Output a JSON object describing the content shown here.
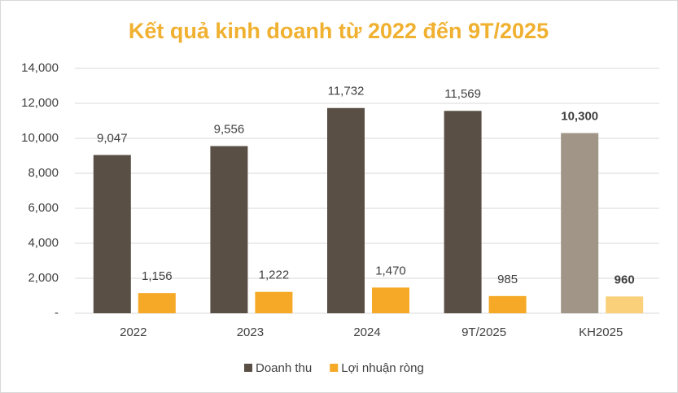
{
  "chart_data": {
    "type": "bar",
    "title": "Kết quả kinh doanh từ 2022 đến 9T/2025",
    "categories": [
      "2022",
      "2023",
      "2024",
      "9T/2025",
      "KH2025"
    ],
    "series": [
      {
        "name": "Doanh thu",
        "color": "#594f45",
        "colors": [
          "#594f45",
          "#594f45",
          "#594f45",
          "#594f45",
          "#a09586"
        ],
        "values": [
          9047,
          9556,
          11732,
          11569,
          10300
        ],
        "value_labels": [
          "9,047",
          "9,556",
          "11,732",
          "11,569",
          "10,300"
        ]
      },
      {
        "name": "Lợi nhuận ròng",
        "color": "#f5a926",
        "colors": [
          "#f5a926",
          "#f5a926",
          "#f5a926",
          "#f5a926",
          "#fbd07a"
        ],
        "values": [
          1156,
          1222,
          1470,
          985,
          960
        ],
        "value_labels": [
          "1,156",
          "1,222",
          "1,470",
          "985",
          "960"
        ]
      }
    ],
    "ylim": [
      0,
      14000
    ],
    "yticks": [
      {
        "value": 0,
        "label": "-"
      },
      {
        "value": 2000,
        "label": "2,000"
      },
      {
        "value": 4000,
        "label": "4,000"
      },
      {
        "value": 6000,
        "label": "6,000"
      },
      {
        "value": 8000,
        "label": "8,000"
      },
      {
        "value": 10000,
        "label": "10,000"
      },
      {
        "value": 12000,
        "label": "12,000"
      },
      {
        "value": 14000,
        "label": "14,000"
      }
    ],
    "grid": true,
    "legend": "bottom"
  }
}
